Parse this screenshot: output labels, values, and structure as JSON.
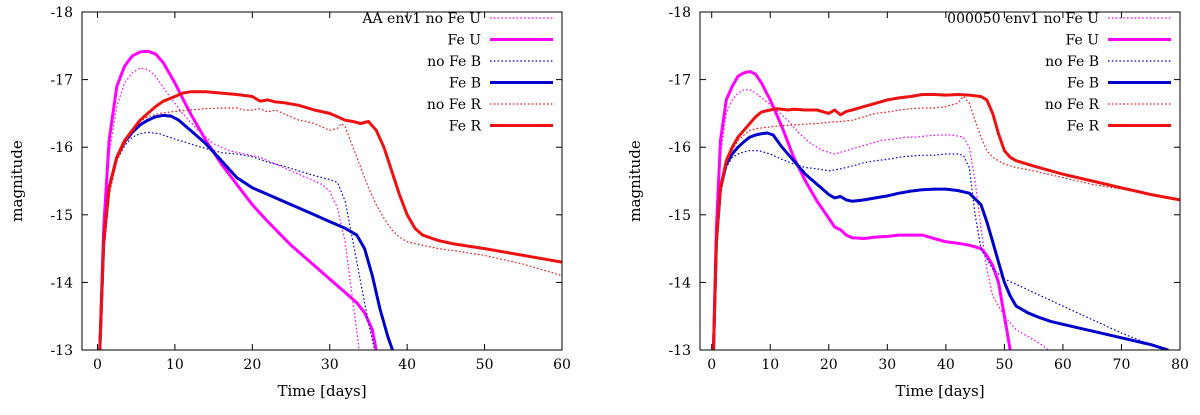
{
  "chart_data": [
    {
      "type": "line",
      "xlabel": "Time [days]",
      "ylabel": "magnitude",
      "xlim": [
        -2,
        60
      ],
      "ylim": [
        -13,
        -18
      ],
      "xticks": [
        0,
        10,
        20,
        30,
        40,
        50,
        60
      ],
      "yticks": [
        -13,
        -14,
        -15,
        -16,
        -17,
        -18
      ],
      "legend_position": "top-right",
      "series": [
        {
          "name": "AA env1 no Fe U",
          "color": "#ff00ff",
          "style": "dotted",
          "width": 1.2,
          "x": [
            0.3,
            0.8,
            1.5,
            2.5,
            3.5,
            4.5,
            5.5,
            6.5,
            7.5,
            9,
            11,
            13,
            15,
            17,
            19,
            21,
            23,
            25,
            27,
            29,
            30,
            31,
            32,
            33,
            33.8
          ],
          "y": [
            -13,
            -14.6,
            -15.9,
            -16.6,
            -16.95,
            -17.1,
            -17.17,
            -17.15,
            -17.05,
            -16.8,
            -16.5,
            -16.25,
            -16.05,
            -15.95,
            -15.9,
            -15.85,
            -15.75,
            -15.65,
            -15.55,
            -15.45,
            -15.35,
            -15.1,
            -14.6,
            -13.7,
            -13
          ]
        },
        {
          "name": "Fe U",
          "color": "#ff00ff",
          "style": "solid",
          "width": 3,
          "x": [
            0.3,
            0.8,
            1.5,
            2.5,
            3.5,
            4.5,
            5.5,
            6.5,
            7.5,
            8.5,
            10,
            12,
            14,
            16,
            18,
            20,
            22,
            25,
            28,
            30,
            32,
            33.5,
            34.5,
            35.5,
            36
          ],
          "y": [
            -13,
            -14.8,
            -16.1,
            -16.9,
            -17.2,
            -17.35,
            -17.41,
            -17.42,
            -17.38,
            -17.25,
            -16.95,
            -16.5,
            -16.1,
            -15.75,
            -15.45,
            -15.15,
            -14.9,
            -14.55,
            -14.25,
            -14.05,
            -13.85,
            -13.7,
            -13.55,
            -13.3,
            -13
          ]
        },
        {
          "name": "no Fe B",
          "color": "#0000cc",
          "style": "dotted",
          "width": 1.2,
          "x": [
            0.3,
            0.8,
            1.5,
            2.5,
            3.5,
            4.5,
            5.5,
            6.5,
            8,
            10,
            12,
            14,
            16,
            18,
            19,
            20,
            21,
            22,
            24,
            26,
            28,
            30,
            31,
            32,
            33,
            34,
            35,
            35.8
          ],
          "y": [
            -13,
            -14.4,
            -15.3,
            -15.8,
            -16.02,
            -16.15,
            -16.2,
            -16.22,
            -16.2,
            -16.12,
            -16.05,
            -15.98,
            -15.92,
            -15.9,
            -15.88,
            -15.86,
            -15.82,
            -15.78,
            -15.72,
            -15.65,
            -15.58,
            -15.52,
            -15.48,
            -15.2,
            -14.6,
            -14.0,
            -13.4,
            -13
          ]
        },
        {
          "name": "Fe B",
          "color": "#0000cc",
          "style": "solid",
          "width": 3,
          "x": [
            0.3,
            0.8,
            1.5,
            2.5,
            3.5,
            4.5,
            5.5,
            6.5,
            7.5,
            8.5,
            9.5,
            10.5,
            12,
            14,
            16,
            18,
            20,
            22,
            24,
            26,
            28,
            30,
            32,
            33.5,
            34.5,
            35.5,
            36.5,
            37.5,
            38.1
          ],
          "y": [
            -13,
            -14.6,
            -15.4,
            -15.85,
            -16.08,
            -16.22,
            -16.33,
            -16.4,
            -16.45,
            -16.47,
            -16.46,
            -16.4,
            -16.25,
            -16.05,
            -15.8,
            -15.55,
            -15.4,
            -15.3,
            -15.2,
            -15.1,
            -15.0,
            -14.9,
            -14.8,
            -14.7,
            -14.5,
            -14.1,
            -13.6,
            -13.2,
            -13
          ]
        },
        {
          "name": "no Fe R",
          "color": "#ee1111",
          "style": "dotted",
          "width": 1.2,
          "x": [
            0.3,
            0.8,
            1.5,
            2.5,
            3.5,
            4.5,
            5.5,
            6.5,
            8,
            10,
            12,
            14,
            16,
            18,
            19,
            20,
            21,
            22,
            23,
            24,
            25,
            26,
            27,
            28,
            29,
            30,
            31,
            31.5,
            32,
            33,
            34,
            35,
            36,
            37,
            38,
            39,
            40,
            42,
            44,
            46,
            50,
            55,
            60
          ],
          "y": [
            -13,
            -14.5,
            -15.3,
            -15.8,
            -16.05,
            -16.25,
            -16.38,
            -16.45,
            -16.5,
            -16.53,
            -16.55,
            -16.57,
            -16.58,
            -16.58,
            -16.55,
            -16.55,
            -16.57,
            -16.52,
            -16.55,
            -16.5,
            -16.45,
            -16.4,
            -16.38,
            -16.35,
            -16.3,
            -16.25,
            -16.28,
            -16.35,
            -16.3,
            -16.0,
            -15.7,
            -15.4,
            -15.15,
            -14.95,
            -14.78,
            -14.67,
            -14.6,
            -14.55,
            -14.5,
            -14.47,
            -14.4,
            -14.27,
            -14.1
          ]
        },
        {
          "name": "Fe R",
          "color": "#ee1111",
          "style": "solid",
          "width": 3,
          "x": [
            0.3,
            0.8,
            1.5,
            2.5,
            3.5,
            4.5,
            5.5,
            6.5,
            7.5,
            8.5,
            10,
            11,
            12,
            14,
            16,
            18,
            20,
            21,
            22,
            23,
            24,
            26,
            28,
            30,
            31,
            32,
            33,
            34,
            35,
            36,
            37,
            38,
            39,
            40,
            41,
            42,
            44,
            46,
            50,
            55,
            60
          ],
          "y": [
            -13,
            -14.6,
            -15.4,
            -15.85,
            -16.1,
            -16.25,
            -16.4,
            -16.5,
            -16.6,
            -16.68,
            -16.75,
            -16.8,
            -16.82,
            -16.82,
            -16.8,
            -16.78,
            -16.75,
            -16.68,
            -16.7,
            -16.67,
            -16.66,
            -16.62,
            -16.55,
            -16.5,
            -16.45,
            -16.4,
            -16.38,
            -16.35,
            -16.38,
            -16.25,
            -16.0,
            -15.65,
            -15.3,
            -15.0,
            -14.8,
            -14.7,
            -14.62,
            -14.57,
            -14.5,
            -14.4,
            -14.3
          ]
        }
      ]
    },
    {
      "type": "line",
      "xlabel": "Time [days]",
      "ylabel": "magnitude",
      "xlim": [
        -2,
        80
      ],
      "ylim": [
        -13,
        -18
      ],
      "xticks": [
        0,
        10,
        20,
        30,
        40,
        50,
        60,
        70,
        80
      ],
      "yticks": [
        -13,
        -14,
        -15,
        -16,
        -17,
        -18
      ],
      "legend_position": "top-right",
      "series": [
        {
          "name": "000050 env1 no Fe U",
          "color": "#ff00ff",
          "style": "dotted",
          "width": 1.2,
          "x": [
            0.3,
            0.8,
            1.5,
            2.5,
            3.5,
            4.5,
            5.5,
            6.5,
            7.5,
            9,
            11,
            13,
            15,
            17,
            19,
            21,
            23,
            25,
            27,
            29,
            31,
            33,
            35,
            37,
            39,
            41,
            43,
            44,
            45,
            46,
            47,
            48,
            50,
            52,
            54,
            56,
            57.5
          ],
          "y": [
            -13,
            -14.6,
            -15.9,
            -16.5,
            -16.7,
            -16.8,
            -16.85,
            -16.85,
            -16.8,
            -16.7,
            -16.55,
            -16.4,
            -16.2,
            -16.05,
            -15.95,
            -15.9,
            -15.95,
            -16.0,
            -16.05,
            -16.1,
            -16.12,
            -16.15,
            -16.15,
            -16.17,
            -16.18,
            -16.18,
            -16.15,
            -16.0,
            -15.5,
            -14.8,
            -14.2,
            -13.8,
            -13.5,
            -13.3,
            -13.2,
            -13.1,
            -13
          ]
        },
        {
          "name": "Fe U",
          "color": "#ff00ff",
          "style": "solid",
          "width": 3,
          "x": [
            0.3,
            0.8,
            1.5,
            2.5,
            3.5,
            4.5,
            5.5,
            6.5,
            7.5,
            8.5,
            10,
            12,
            14,
            16,
            18,
            20,
            21,
            22,
            23,
            24,
            26,
            28,
            30,
            32,
            34,
            36,
            38,
            40,
            42,
            44,
            46,
            47,
            48,
            49,
            50,
            51
          ],
          "y": [
            -13,
            -14.8,
            -16.1,
            -16.7,
            -16.9,
            -17.05,
            -17.1,
            -17.12,
            -17.08,
            -16.95,
            -16.7,
            -16.3,
            -15.85,
            -15.5,
            -15.2,
            -14.95,
            -14.82,
            -14.78,
            -14.7,
            -14.66,
            -14.65,
            -14.67,
            -14.68,
            -14.7,
            -14.7,
            -14.7,
            -14.65,
            -14.6,
            -14.58,
            -14.55,
            -14.5,
            -14.4,
            -14.25,
            -14.0,
            -13.5,
            -13
          ]
        },
        {
          "name": "no Fe B",
          "color": "#0000cc",
          "style": "dotted",
          "width": 1.2,
          "x": [
            0.3,
            0.8,
            1.5,
            2.5,
            3.5,
            4.5,
            5.5,
            6.5,
            8,
            10,
            12,
            14,
            16,
            18,
            20,
            22,
            24,
            26,
            28,
            30,
            32,
            34,
            36,
            38,
            40,
            42,
            43,
            44,
            45,
            46,
            48,
            50,
            55,
            60,
            65,
            70,
            75,
            78
          ],
          "y": [
            -13,
            -14.5,
            -15.3,
            -15.7,
            -15.85,
            -15.9,
            -15.93,
            -15.95,
            -15.95,
            -15.9,
            -15.82,
            -15.75,
            -15.7,
            -15.68,
            -15.65,
            -15.68,
            -15.72,
            -15.77,
            -15.8,
            -15.82,
            -15.85,
            -15.87,
            -15.88,
            -15.88,
            -15.9,
            -15.9,
            -15.88,
            -15.7,
            -15.0,
            -14.5,
            -14.2,
            -14.05,
            -13.85,
            -13.65,
            -13.45,
            -13.25,
            -13.08,
            -13
          ]
        },
        {
          "name": "Fe B",
          "color": "#0000cc",
          "style": "solid",
          "width": 3,
          "x": [
            0.3,
            0.8,
            1.5,
            2.5,
            3.5,
            4.5,
            5.5,
            6.5,
            7.5,
            8.5,
            9.5,
            10.5,
            12,
            14,
            16,
            18,
            20,
            21,
            22,
            23,
            24,
            25,
            26,
            28,
            30,
            32,
            34,
            36,
            38,
            40,
            42,
            44,
            46,
            47,
            48,
            49,
            50,
            51,
            52,
            54,
            56,
            58,
            60,
            65,
            70,
            75,
            78
          ],
          "y": [
            -13,
            -14.6,
            -15.4,
            -15.75,
            -15.9,
            -16.0,
            -16.08,
            -16.15,
            -16.18,
            -16.2,
            -16.21,
            -16.18,
            -16.0,
            -15.8,
            -15.6,
            -15.45,
            -15.3,
            -15.25,
            -15.27,
            -15.22,
            -15.2,
            -15.21,
            -15.22,
            -15.25,
            -15.28,
            -15.32,
            -15.35,
            -15.37,
            -15.38,
            -15.38,
            -15.36,
            -15.32,
            -15.15,
            -14.9,
            -14.6,
            -14.3,
            -14.0,
            -13.8,
            -13.65,
            -13.55,
            -13.48,
            -13.42,
            -13.38,
            -13.28,
            -13.18,
            -13.08,
            -13
          ]
        },
        {
          "name": "no Fe R",
          "color": "#ee1111",
          "style": "dotted",
          "width": 1.2,
          "x": [
            0.3,
            0.8,
            1.5,
            2.5,
            3.5,
            4.5,
            5.5,
            6.5,
            8,
            10,
            12,
            14,
            16,
            18,
            20,
            22,
            24,
            26,
            28,
            30,
            32,
            34,
            36,
            38,
            40,
            42,
            43,
            44,
            45,
            46,
            47,
            48,
            49,
            50,
            52,
            55,
            60,
            65,
            70,
            75,
            80
          ],
          "y": [
            -13,
            -14.5,
            -15.3,
            -15.75,
            -15.95,
            -16.1,
            -16.18,
            -16.25,
            -16.28,
            -16.3,
            -16.32,
            -16.33,
            -16.34,
            -16.35,
            -16.37,
            -16.38,
            -16.4,
            -16.45,
            -16.5,
            -16.52,
            -16.55,
            -16.57,
            -16.58,
            -16.58,
            -16.6,
            -16.65,
            -16.75,
            -16.65,
            -16.4,
            -16.15,
            -15.95,
            -15.85,
            -15.8,
            -15.75,
            -15.7,
            -15.65,
            -15.55,
            -15.45,
            -15.38,
            -15.3,
            -15.22
          ]
        },
        {
          "name": "Fe R",
          "color": "#ee1111",
          "style": "solid",
          "width": 3,
          "x": [
            0.3,
            0.8,
            1.5,
            2.5,
            3.5,
            4.5,
            5.5,
            6.5,
            7.5,
            8.5,
            10,
            11,
            12,
            13,
            14,
            16,
            18,
            20,
            21,
            22,
            23,
            24,
            26,
            28,
            30,
            32,
            34,
            36,
            38,
            40,
            42,
            44,
            46,
            47,
            48,
            49,
            50,
            51,
            52,
            55,
            60,
            65,
            70,
            75,
            80
          ],
          "y": [
            -13,
            -14.6,
            -15.4,
            -15.8,
            -16.0,
            -16.15,
            -16.25,
            -16.35,
            -16.45,
            -16.52,
            -16.55,
            -16.57,
            -16.56,
            -16.55,
            -16.56,
            -16.55,
            -16.55,
            -16.5,
            -16.55,
            -16.48,
            -16.53,
            -16.55,
            -16.6,
            -16.65,
            -16.7,
            -16.73,
            -16.75,
            -16.78,
            -16.78,
            -16.77,
            -16.78,
            -16.77,
            -16.75,
            -16.7,
            -16.5,
            -16.2,
            -15.95,
            -15.85,
            -15.8,
            -15.72,
            -15.6,
            -15.5,
            -15.4,
            -15.3,
            -15.22
          ]
        }
      ]
    }
  ]
}
